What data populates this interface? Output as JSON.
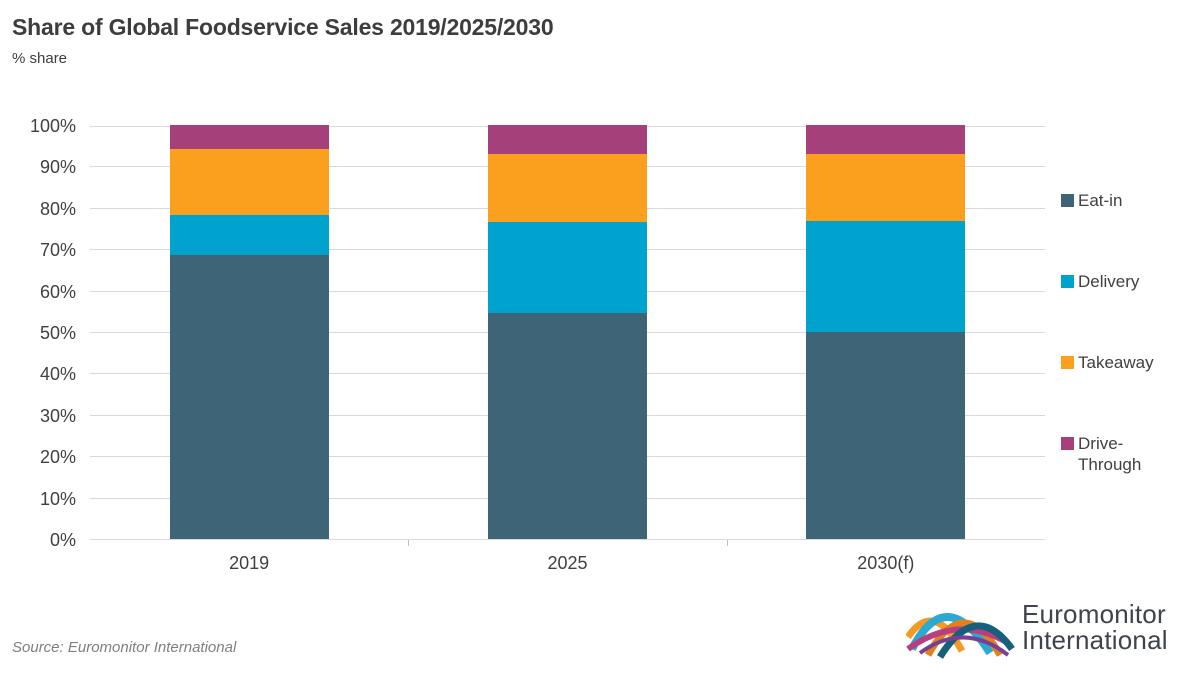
{
  "header": {
    "title": "Share of Global Foodservice Sales 2019/2025/2030",
    "subtitle": "% share"
  },
  "chart_data": {
    "type": "bar",
    "stacked": true,
    "title": "Share of Global Foodservice Sales 2019/2025/2030",
    "subtitle": "% share",
    "categories": [
      "2019",
      "2025",
      "2030(f)"
    ],
    "series": [
      {
        "name": "Eat-in",
        "color": "#3d6477",
        "values": [
          68.5,
          54.6,
          50.0
        ]
      },
      {
        "name": "Delivery",
        "color": "#00a3cd",
        "values": [
          9.7,
          21.9,
          26.9
        ]
      },
      {
        "name": "Takeaway",
        "color": "#faa01e",
        "values": [
          16.1,
          16.4,
          16.1
        ]
      },
      {
        "name": "Drive-Through",
        "color": "#a6407a",
        "values": [
          5.7,
          7.1,
          7.0
        ]
      }
    ],
    "ylabel": "% share",
    "ylim": [
      0,
      100
    ],
    "ytick_step": 10,
    "ytick_suffix": "%",
    "grid": true,
    "legend_position": "right"
  },
  "footer": {
    "source": "Source: Euromonitor International",
    "logo_line1": "Euromonitor",
    "logo_line2": "International"
  },
  "colors": {
    "grid": "#d9d9d9",
    "axis_text": "#404040",
    "title_text": "#3d3d3d",
    "source_text": "#7f7f7f",
    "logo_text": "#3e4449"
  }
}
